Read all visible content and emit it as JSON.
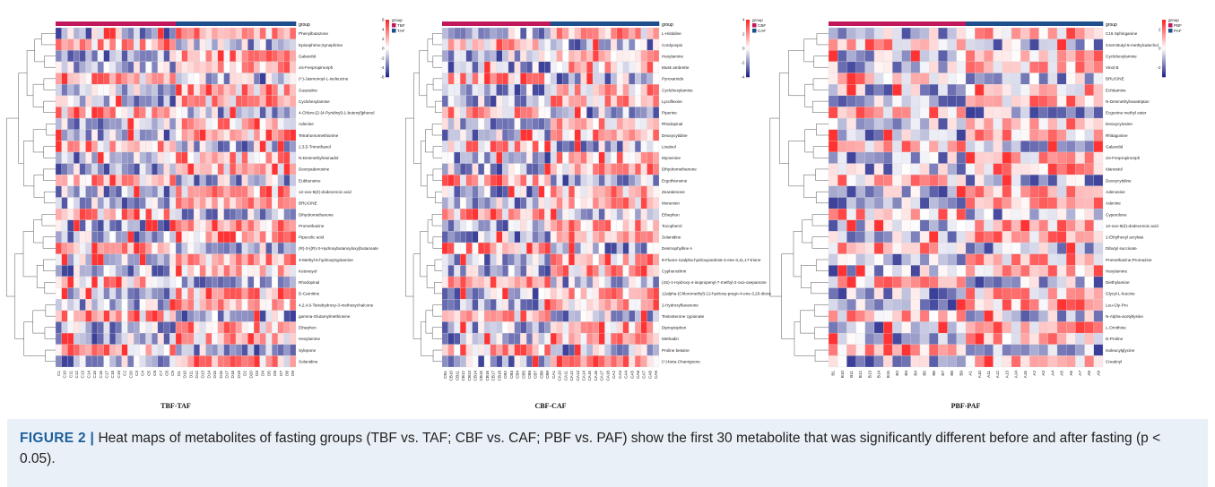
{
  "figure": {
    "panels": [
      {
        "id": "tbf-taf",
        "title": "TBF-TAF",
        "group_label": "group",
        "legend_groups": [
          {
            "name": "TBF",
            "color": "#c2185b"
          },
          {
            "name": "TAF",
            "color": "#1f4e8c"
          }
        ],
        "scale_ticks": [
          "6",
          "4",
          "2",
          "0",
          "-2",
          "-4",
          "-6"
        ],
        "scale_min": -6,
        "scale_max": 6,
        "first_group_count": 20,
        "samples": [
          "C1",
          "C10",
          "C11",
          "C12",
          "C13",
          "C14",
          "C15",
          "C16",
          "C17",
          "C18",
          "C19",
          "C2",
          "C20",
          "C3",
          "C4",
          "C5",
          "C6",
          "C7",
          "C8",
          "C9",
          "D1",
          "D10",
          "D11",
          "D12",
          "D13",
          "D14",
          "D15",
          "D16",
          "D17",
          "D18",
          "D19",
          "D2",
          "D20",
          "D3",
          "D4",
          "D5",
          "D6",
          "D7",
          "D8",
          "D9"
        ],
        "metabolites": [
          "Phenylbutazone",
          "Epinephrine;Synephrine",
          "Galaxolid",
          "cis-Fenpropimorph",
          "(+)-Jasmonoyl-L-isoleucine",
          "Guazatine",
          "Cyclohexylamine",
          "4-Chloro-[2-(4-Pyridinyl)-1-butenyl]phenol",
          "Adenine",
          "Tetrahomomethionine",
          "2,3,5-Trimethanol",
          "N-Desmethyltramadol",
          "Deoxyadenosine",
          "Eubbuneine",
          "12-oxo-9(Z)-dodecenoic acid",
          "BRUCINE",
          "Dihydromethanone",
          "Promethazine",
          "Pipecolic acid",
          "(R)-3-((R)-3-Hydroxybutanoyloxy)butanoate",
          "3-Methyl-5-hydroxytryptamine",
          "Ketoneyol",
          "Rhodopinal",
          "D-Carnitine",
          "4,2,4,6-Tetrahydroxy-3-methoxychalcone",
          "gamma-Glutamylmethionine",
          "Ethephon",
          "Hexylamine",
          "Sylepone",
          "Solanidine"
        ]
      },
      {
        "id": "cbf-caf",
        "title": "CBF-CAF",
        "group_label": "group",
        "legend_groups": [
          {
            "name": "CBF",
            "color": "#c2185b"
          },
          {
            "name": "CAF",
            "color": "#1f4e8c"
          }
        ],
        "scale_ticks": [
          "4",
          "2",
          "0",
          "-2",
          "-4"
        ],
        "scale_min": -4,
        "scale_max": 4,
        "first_group_count": 18,
        "samples": [
          "CB1",
          "CB10",
          "CB11",
          "CB12",
          "CB13",
          "CB14",
          "CB15",
          "CB16",
          "CB17",
          "CB18",
          "CB2",
          "CB3",
          "CB4",
          "CB5",
          "CB6",
          "CB7",
          "CB8",
          "CB9",
          "CA1",
          "CA10",
          "CA11",
          "CA12",
          "CA13",
          "CA14",
          "CA15",
          "CA16",
          "CA17",
          "CA18",
          "CA2",
          "CA3",
          "CA4",
          "CA5",
          "CA6",
          "CA7",
          "CA8",
          "CA9"
        ],
        "metabolites": [
          "L-Histidine",
          "Cordycepin",
          "Hexylamine",
          "Musk ambrette",
          "Pyroxamide",
          "Cyclohexylamine",
          "Lycoflexine",
          "Piperine",
          "Rhodopinal",
          "Deoxycytidine",
          "Linalool",
          "Myosmine",
          "Dihydromethanone",
          "Ergothioneine",
          "Zearalenone",
          "Monensin",
          "Ethephon",
          "Tocopherol",
          "Solanidine",
          "Desmophylline A",
          "9-Fluoro-11alpha-hydroxyandrost-4-ene-3,11,17-trione",
          "Cyphenothrin",
          "(4S)-1-Hydroxy-4-isopropenyl-7-methyl-2-oxo-oxepanone",
          "12alpha-(Chloromethyl)-12-hydroxy-pregn-4-ene-3,20-dione",
          "2-Hydroxyflavanone",
          "Testosterone cypionate",
          "Dipropiophen",
          "Methadin",
          "Proline betaine",
          "(+)-beta-Chamigrene"
        ]
      },
      {
        "id": "pbf-paf",
        "title": "PBF-PAF",
        "group_label": "group",
        "legend_groups": [
          {
            "name": "PBF",
            "color": "#c2185b"
          },
          {
            "name": "PAF",
            "color": "#1f4e8c"
          }
        ],
        "scale_ticks": [
          "2",
          "0",
          "-2"
        ],
        "scale_min": -3,
        "scale_max": 3,
        "first_group_count": 15,
        "samples": [
          "B1",
          "B10",
          "B11",
          "B12",
          "B13",
          "B14",
          "B15",
          "B2",
          "B3",
          "B4",
          "B5",
          "B6",
          "B7",
          "B8",
          "B9",
          "A1",
          "A10",
          "A11",
          "A12",
          "A13",
          "A14",
          "A15",
          "A2",
          "A3",
          "A4",
          "A5",
          "A6",
          "A7",
          "A8",
          "A9"
        ],
        "metabolites": [
          "C16 Sphinganine",
          "3-tert-Butyl-5-methylcatechol",
          "Cyclohexylamine",
          "Vinol B",
          "BRUCINE",
          "Echitamine",
          "N-Desmethylnaratriptan",
          "Ecgonine methyl ester",
          "Deoxycytosine",
          "Rhitagonine",
          "Galaxolid",
          "cis-Fenpropimorph",
          "Idanestol",
          "Deoxycytidine",
          "Adenosine",
          "Adenine",
          "Cyperolone",
          "12-oxo-9(Z)-dodecenoic acid",
          "2-Ethylhexyl acrylate",
          "Dibutyl succinate",
          "Promethazine;Promazine",
          "Hexylamine",
          "Diethylamine",
          "Glycyl-L-leucine",
          "Leu-Gly-Pro",
          "N-Alpha-acetyllysine",
          "L-Ornithine",
          "D-Proline",
          "Isoleucylglycine",
          "Creatinyl"
        ]
      }
    ],
    "caption": {
      "label": "FIGURE 2 |",
      "text": "Heat maps of metabolites of fasting groups (TBF vs. TAF; CBF vs. CAF; PBF vs. PAF) show the first 30 metabolite that was significantly different before and after fasting (p < 0.05)."
    }
  }
}
